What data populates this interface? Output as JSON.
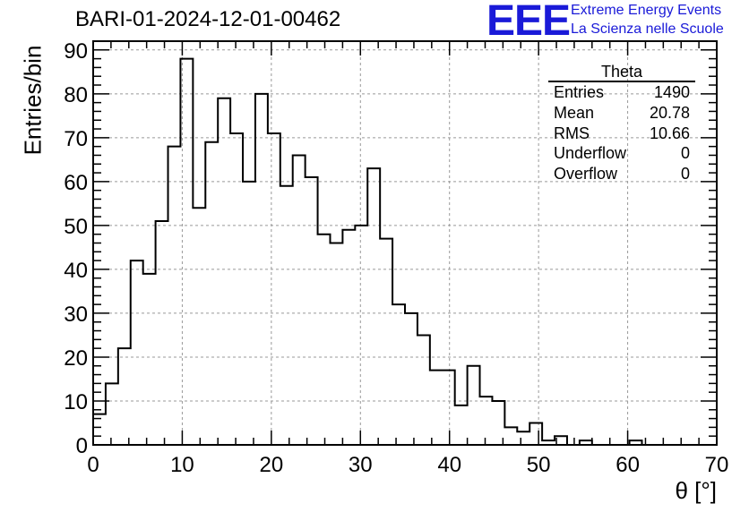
{
  "header": {
    "run_title": "BARI-01-2024-12-01-00462",
    "logo_text": "EEE",
    "org_line1": "Extreme Energy Events",
    "org_line2": "La Scienza nelle Scuole"
  },
  "stats_box": {
    "title": "Theta",
    "rows": [
      {
        "label": "Entries",
        "value": "1490"
      },
      {
        "label": "Mean",
        "value": "20.78"
      },
      {
        "label": "RMS",
        "value": "10.66"
      },
      {
        "label": "Underflow",
        "value": "0"
      },
      {
        "label": "Overflow",
        "value": "0"
      }
    ]
  },
  "chart_data": {
    "type": "histogram",
    "xlabel": "θ [°]",
    "ylabel": "Entries/bin",
    "xlim": [
      0,
      70
    ],
    "ylim": [
      0,
      92
    ],
    "xticks": [
      0,
      10,
      20,
      30,
      40,
      50,
      60,
      70
    ],
    "yticks": [
      0,
      10,
      20,
      30,
      40,
      50,
      60,
      70,
      80,
      90
    ],
    "grid": true,
    "bin_width": 1.4,
    "bin_start": 0,
    "values": [
      7,
      14,
      22,
      42,
      39,
      51,
      68,
      88,
      54,
      69,
      79,
      71,
      60,
      80,
      71,
      59,
      66,
      61,
      48,
      46,
      49,
      50,
      63,
      47,
      32,
      30,
      25,
      17,
      17,
      9,
      18,
      11,
      10,
      4,
      3,
      5,
      1,
      2,
      0,
      1,
      0,
      0,
      0,
      1,
      0,
      0,
      0,
      0,
      0,
      0
    ],
    "colors": {
      "line": "#000000",
      "grid": "#999999"
    }
  }
}
